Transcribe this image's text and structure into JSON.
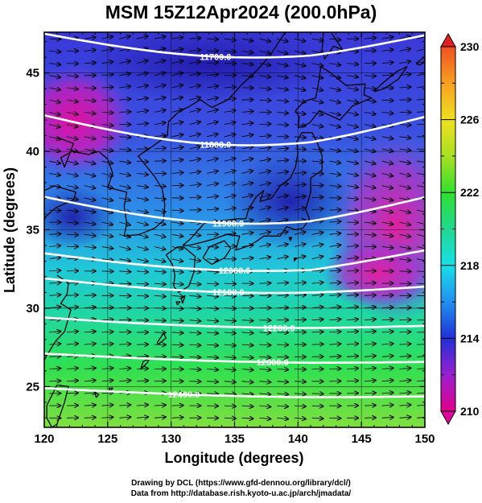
{
  "title": "MSM 15Z12Apr2024 (200.0hPa)",
  "x_axis": {
    "label": "Longitude (degrees)",
    "range": [
      120,
      150
    ],
    "ticks": [
      120,
      125,
      130,
      135,
      140,
      145,
      150
    ],
    "tick_labels": [
      "120",
      "125",
      "130",
      "135",
      "140",
      "145",
      "150"
    ]
  },
  "y_axis": {
    "label": "Latitude  (degrees)",
    "range": [
      22.4,
      47.6
    ],
    "ticks": [
      25,
      30,
      35,
      40,
      45
    ],
    "tick_labels": [
      "25",
      "30",
      "35",
      "40",
      "45"
    ]
  },
  "colorbar": {
    "range": [
      210,
      230
    ],
    "labels": [
      "210",
      "214",
      "218",
      "222",
      "226",
      "230"
    ],
    "colors": [
      "#e0008a",
      "#9a1fd0",
      "#2030d8",
      "#2090f0",
      "#18e0e8",
      "#20d890",
      "#30e030",
      "#a8e020",
      "#f0e020",
      "#f8a020",
      "#f05020",
      "#e02020"
    ]
  },
  "height_contours": [
    {
      "label": "11700.0",
      "lat": 47.2
    },
    {
      "label": "11800.0",
      "lat": 42.0
    },
    {
      "label": "11900.0",
      "lat": 36.8
    },
    {
      "label": "12000.0",
      "lat": 33.2
    },
    {
      "label": "12100.0",
      "lat": 31.6
    },
    {
      "label": "12200.0",
      "lat": 29.1
    },
    {
      "label": "12300.0",
      "lat": 26.8
    },
    {
      "label": "12400.0",
      "lat": 24.6
    }
  ],
  "credits": {
    "line1": "Drawing by DCL (https://www.gfd-dennou.org/library/dcl/)",
    "line2": "Data from http://database.rish.kyoto-u.ac.jp/arch/jmadata/"
  }
}
